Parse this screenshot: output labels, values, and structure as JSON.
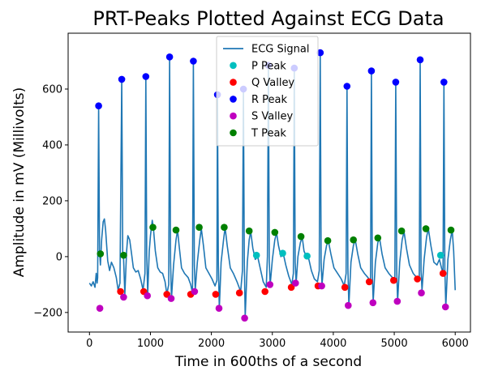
{
  "chart_data": {
    "type": "line",
    "title": "PRT-Peaks Plotted Against ECG Data",
    "xlabel": "Time in 600ths of a second",
    "ylabel": "Amplitude in mV (Millivolts)",
    "xlim": [
      -350,
      6250
    ],
    "ylim": [
      -270,
      800
    ],
    "xticks": [
      0,
      1000,
      2000,
      3000,
      4000,
      5000,
      6000
    ],
    "yticks": [
      -200,
      0,
      200,
      400,
      600
    ],
    "grid": false,
    "legend_position": "top-center",
    "series": [
      {
        "name": "ECG Signal",
        "kind": "line",
        "color": "#1f77b4",
        "points": [
          [
            0,
            -95
          ],
          [
            30,
            -105
          ],
          [
            60,
            -90
          ],
          [
            90,
            -110
          ],
          [
            110,
            -60
          ],
          [
            125,
            -95
          ],
          [
            135,
            -75
          ],
          [
            150,
            540
          ],
          [
            165,
            20
          ],
          [
            180,
            -30
          ],
          [
            200,
            60
          ],
          [
            225,
            125
          ],
          [
            245,
            135
          ],
          [
            265,
            95
          ],
          [
            300,
            -15
          ],
          [
            330,
            -50
          ],
          [
            360,
            -20
          ],
          [
            400,
            -40
          ],
          [
            440,
            -75
          ],
          [
            470,
            -120
          ],
          [
            500,
            -95
          ],
          [
            530,
            635
          ],
          [
            545,
            10
          ],
          [
            560,
            -10
          ],
          [
            580,
            -135
          ],
          [
            610,
            20
          ],
          [
            630,
            75
          ],
          [
            660,
            60
          ],
          [
            690,
            10
          ],
          [
            720,
            -40
          ],
          [
            760,
            -55
          ],
          [
            800,
            -50
          ],
          [
            840,
            -80
          ],
          [
            880,
            -120
          ],
          [
            910,
            -60
          ],
          [
            925,
            645
          ],
          [
            940,
            5
          ],
          [
            955,
            -135
          ],
          [
            980,
            20
          ],
          [
            1000,
            75
          ],
          [
            1030,
            130
          ],
          [
            1050,
            100
          ],
          [
            1080,
            20
          ],
          [
            1120,
            -40
          ],
          [
            1160,
            -55
          ],
          [
            1200,
            -60
          ],
          [
            1240,
            -90
          ],
          [
            1270,
            -135
          ],
          [
            1300,
            -100
          ],
          [
            1315,
            715
          ],
          [
            1330,
            -20
          ],
          [
            1345,
            -150
          ],
          [
            1380,
            -30
          ],
          [
            1420,
            60
          ],
          [
            1445,
            95
          ],
          [
            1470,
            40
          ],
          [
            1510,
            -40
          ],
          [
            1560,
            -60
          ],
          [
            1620,
            -75
          ],
          [
            1660,
            -100
          ],
          [
            1690,
            -130
          ],
          [
            1705,
            700
          ],
          [
            1720,
            -30
          ],
          [
            1735,
            -120
          ],
          [
            1770,
            -20
          ],
          [
            1810,
            60
          ],
          [
            1835,
            100
          ],
          [
            1870,
            40
          ],
          [
            1910,
            -40
          ],
          [
            1960,
            -60
          ],
          [
            2010,
            -80
          ],
          [
            2060,
            -105
          ],
          [
            2090,
            -85
          ],
          [
            2100,
            580
          ],
          [
            2115,
            -30
          ],
          [
            2130,
            -185
          ],
          [
            2160,
            -20
          ],
          [
            2200,
            60
          ],
          [
            2225,
            105
          ],
          [
            2260,
            40
          ],
          [
            2310,
            -40
          ],
          [
            2360,
            -60
          ],
          [
            2420,
            -90
          ],
          [
            2480,
            -125
          ],
          [
            2510,
            -50
          ],
          [
            2525,
            600
          ],
          [
            2540,
            -20
          ],
          [
            2555,
            -215
          ],
          [
            2590,
            -20
          ],
          [
            2620,
            60
          ],
          [
            2645,
            90
          ],
          [
            2680,
            30
          ],
          [
            2720,
            -10
          ],
          [
            2760,
            0
          ],
          [
            2800,
            -40
          ],
          [
            2850,
            -90
          ],
          [
            2900,
            -110
          ],
          [
            2920,
            0
          ],
          [
            2935,
            685
          ],
          [
            2950,
            -20
          ],
          [
            2965,
            -100
          ],
          [
            3000,
            -10
          ],
          [
            3040,
            60
          ],
          [
            3070,
            85
          ],
          [
            3100,
            40
          ],
          [
            3140,
            0
          ],
          [
            3180,
            10
          ],
          [
            3220,
            -30
          ],
          [
            3270,
            -70
          ],
          [
            3320,
            -100
          ],
          [
            3345,
            -60
          ],
          [
            3360,
            675
          ],
          [
            3375,
            -20
          ],
          [
            3390,
            -95
          ],
          [
            3420,
            0
          ],
          [
            3460,
            50
          ],
          [
            3490,
            70
          ],
          [
            3520,
            20
          ],
          [
            3560,
            0
          ],
          [
            3600,
            -10
          ],
          [
            3640,
            -50
          ],
          [
            3690,
            -80
          ],
          [
            3740,
            -90
          ],
          [
            3770,
            -50
          ],
          [
            3785,
            730
          ],
          [
            3800,
            -20
          ],
          [
            3815,
            -100
          ],
          [
            3850,
            -10
          ],
          [
            3890,
            40
          ],
          [
            3920,
            55
          ],
          [
            3960,
            10
          ],
          [
            4010,
            -40
          ],
          [
            4070,
            -60
          ],
          [
            4130,
            -80
          ],
          [
            4180,
            -105
          ],
          [
            4210,
            -60
          ],
          [
            4225,
            610
          ],
          [
            4240,
            -40
          ],
          [
            4255,
            -175
          ],
          [
            4290,
            -20
          ],
          [
            4330,
            40
          ],
          [
            4360,
            60
          ],
          [
            4400,
            10
          ],
          [
            4450,
            -40
          ],
          [
            4510,
            -60
          ],
          [
            4570,
            -75
          ],
          [
            4610,
            -90
          ],
          [
            4625,
            665
          ],
          [
            4640,
            -60
          ],
          [
            4655,
            -160
          ],
          [
            4690,
            -20
          ],
          [
            4730,
            50
          ],
          [
            4760,
            65
          ],
          [
            4800,
            10
          ],
          [
            4850,
            -40
          ],
          [
            4910,
            -60
          ],
          [
            4970,
            -75
          ],
          [
            5010,
            -80
          ],
          [
            5025,
            625
          ],
          [
            5040,
            -50
          ],
          [
            5055,
            -160
          ],
          [
            5090,
            -20
          ],
          [
            5130,
            60
          ],
          [
            5160,
            90
          ],
          [
            5200,
            30
          ],
          [
            5250,
            -30
          ],
          [
            5310,
            -60
          ],
          [
            5370,
            -75
          ],
          [
            5410,
            -80
          ],
          [
            5425,
            705
          ],
          [
            5440,
            -50
          ],
          [
            5455,
            -120
          ],
          [
            5490,
            -10
          ],
          [
            5530,
            70
          ],
          [
            5560,
            100
          ],
          [
            5600,
            40
          ],
          [
            5650,
            -20
          ],
          [
            5700,
            -30
          ],
          [
            5740,
            -10
          ],
          [
            5780,
            -45
          ],
          [
            5800,
            -60
          ],
          [
            5815,
            625
          ],
          [
            5830,
            -40
          ],
          [
            5845,
            -180
          ],
          [
            5880,
            -10
          ],
          [
            5920,
            60
          ],
          [
            5950,
            95
          ],
          [
            5975,
            20
          ],
          [
            6000,
            -120
          ]
        ]
      },
      {
        "name": "P Peak",
        "kind": "marker",
        "color": "#00bfbf",
        "points": [
          [
            2740,
            5
          ],
          [
            3170,
            12
          ],
          [
            3570,
            2
          ],
          [
            5760,
            5
          ]
        ]
      },
      {
        "name": "Q Valley",
        "kind": "marker",
        "color": "#ff0000",
        "points": [
          [
            510,
            -125
          ],
          [
            890,
            -125
          ],
          [
            1270,
            -135
          ],
          [
            1660,
            -135
          ],
          [
            2070,
            -135
          ],
          [
            2460,
            -130
          ],
          [
            2880,
            -125
          ],
          [
            3310,
            -110
          ],
          [
            3750,
            -105
          ],
          [
            4190,
            -110
          ],
          [
            4590,
            -90
          ],
          [
            4990,
            -85
          ],
          [
            5380,
            -80
          ],
          [
            5800,
            -60
          ]
        ]
      },
      {
        "name": "R Peak",
        "kind": "marker",
        "color": "#0000ff",
        "points": [
          [
            150,
            540
          ],
          [
            530,
            635
          ],
          [
            925,
            645
          ],
          [
            1315,
            715
          ],
          [
            1705,
            700
          ],
          [
            2100,
            580
          ],
          [
            2525,
            600
          ],
          [
            2935,
            685
          ],
          [
            3360,
            675
          ],
          [
            3785,
            730
          ],
          [
            4225,
            610
          ],
          [
            4625,
            665
          ],
          [
            5025,
            625
          ],
          [
            5425,
            705
          ],
          [
            5815,
            625
          ]
        ]
      },
      {
        "name": "S Valley",
        "kind": "marker",
        "color": "#bf00bf",
        "points": [
          [
            170,
            -185
          ],
          [
            560,
            -145
          ],
          [
            950,
            -140
          ],
          [
            1340,
            -150
          ],
          [
            1725,
            -125
          ],
          [
            2125,
            -185
          ],
          [
            2545,
            -220
          ],
          [
            2960,
            -100
          ],
          [
            3380,
            -95
          ],
          [
            3810,
            -105
          ],
          [
            4245,
            -175
          ],
          [
            4650,
            -165
          ],
          [
            5050,
            -160
          ],
          [
            5445,
            -130
          ],
          [
            5840,
            -180
          ]
        ]
      },
      {
        "name": "T Peak",
        "kind": "marker",
        "color": "#008000",
        "points": [
          [
            180,
            10
          ],
          [
            560,
            5
          ],
          [
            1040,
            105
          ],
          [
            1420,
            95
          ],
          [
            1800,
            105
          ],
          [
            2210,
            105
          ],
          [
            2620,
            92
          ],
          [
            3040,
            87
          ],
          [
            3470,
            72
          ],
          [
            3910,
            57
          ],
          [
            4330,
            60
          ],
          [
            4730,
            67
          ],
          [
            5120,
            92
          ],
          [
            5520,
            100
          ],
          [
            5930,
            95
          ]
        ]
      }
    ]
  }
}
